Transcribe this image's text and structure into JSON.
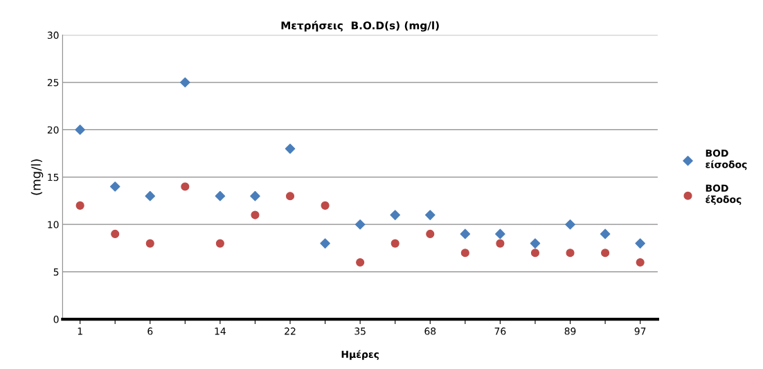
{
  "chart_data": {
    "type": "scatter",
    "title": "Μετρήσεις  B.O.D(s) (mg/l)",
    "xlabel": "Ημέρες",
    "ylabel": "(mg/l)",
    "categories": [
      "1",
      null,
      "6",
      null,
      "14",
      null,
      "22",
      null,
      "35",
      null,
      "68",
      null,
      "76",
      null,
      "89",
      null,
      "97"
    ],
    "series": [
      {
        "name": "BOD\nείσοδος",
        "color": "#4a7ebb",
        "marker": "diamond",
        "values": [
          20,
          14,
          13,
          25,
          13,
          13,
          18,
          8,
          10,
          11,
          11,
          9,
          9,
          8,
          10,
          9,
          8
        ]
      },
      {
        "name": "BOD\nέξοδος",
        "color": "#be4b48",
        "marker": "circle",
        "values": [
          12,
          9,
          8,
          14,
          8,
          11,
          13,
          12,
          6,
          8,
          9,
          7,
          8,
          7,
          7,
          7,
          6
        ]
      }
    ],
    "ylim": [
      0,
      30
    ],
    "yticks": [
      0,
      5,
      10,
      15,
      20,
      25,
      30
    ],
    "grid": "y",
    "legend": "right"
  }
}
